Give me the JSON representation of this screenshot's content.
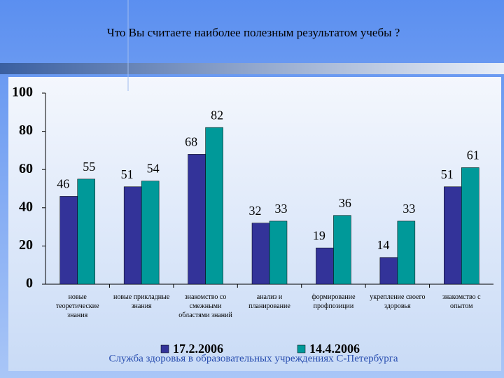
{
  "chart_data": {
    "type": "bar",
    "title": "Что Вы считаете наиболее полезным результатом учебы ?",
    "categories": [
      "новые теоретические знания",
      "новые прикладные знания",
      "знакомство со смежными областями знаний",
      "анализ и планирование",
      "формирование профпозиции",
      "укрепление своего здоровья",
      "знакомство с опытом"
    ],
    "series": [
      {
        "name": "17.2.2006",
        "color": "#333399",
        "values": [
          46,
          51,
          68,
          32,
          19,
          14,
          51
        ]
      },
      {
        "name": "14.4.2006",
        "color": "#009999",
        "values": [
          55,
          54,
          82,
          33,
          36,
          33,
          61
        ]
      }
    ],
    "ylim": [
      0,
      100
    ],
    "yticks": [
      0,
      20,
      40,
      60,
      80,
      100
    ],
    "grid": false,
    "footer": "Служба здоровья в образовательных учреждениях С-Петербурга"
  }
}
